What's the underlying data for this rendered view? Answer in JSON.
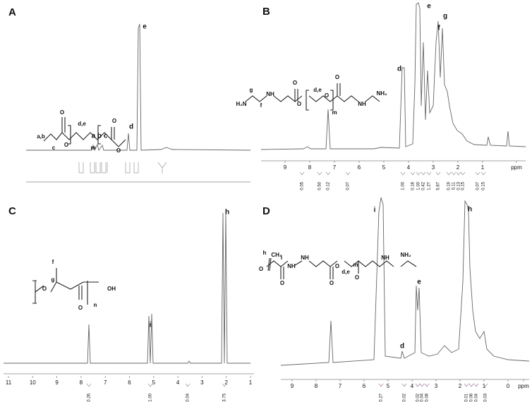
{
  "panels": [
    {
      "label": "A",
      "peaks": [
        "e",
        "d",
        "a b c"
      ],
      "structure": [
        "a,b",
        "c",
        "O",
        "O",
        "O",
        "O",
        "d,e",
        "m"
      ]
    },
    {
      "label": "B",
      "peaks": [
        "d",
        "e",
        "f",
        "g"
      ],
      "structure": [
        "H₂N",
        "g",
        "f",
        "NH",
        "O",
        "O",
        "O",
        "O",
        "d,e",
        "m",
        "NH",
        "NH₂"
      ],
      "axis": [
        "9",
        "8",
        "7",
        "6",
        "5",
        "4",
        "3",
        "2",
        "1",
        "ppm"
      ],
      "integrals": [
        "0.05",
        "0.50",
        "0.12",
        "0.07",
        "1.00",
        "0.16",
        "1.00",
        "0.42",
        "1.27",
        "5.67",
        "0.19",
        "0.11",
        "0.13",
        "0.15",
        "0.07",
        "0.15"
      ]
    },
    {
      "label": "C",
      "peaks": [
        "h",
        "i"
      ],
      "structure": [
        "f",
        "g",
        "O",
        "OH",
        "O",
        "n"
      ],
      "axis": [
        "11",
        "10",
        "9",
        "8",
        "7",
        "6",
        "5",
        "4",
        "3",
        "2",
        "1"
      ],
      "integrals": [
        "0.26",
        "1.00",
        "0.04",
        "3.75"
      ]
    },
    {
      "label": "D",
      "peaks": [
        "i",
        "h",
        "e",
        "d"
      ],
      "structure": [
        "h",
        "CH₃",
        "O",
        "i",
        "NH",
        "O",
        "NH",
        "O",
        "O",
        "O",
        "d,e",
        "m",
        "NH",
        "NH₂"
      ],
      "axis": [
        "9",
        "8",
        "7",
        "6",
        "5",
        "4",
        "3",
        "2",
        "1",
        "0",
        "ppm"
      ],
      "integrals": [
        "0.27",
        "0.02",
        "0.02",
        "0.04",
        "0.08",
        "0.01",
        "0.06",
        "0.04",
        "0.03"
      ]
    }
  ]
}
